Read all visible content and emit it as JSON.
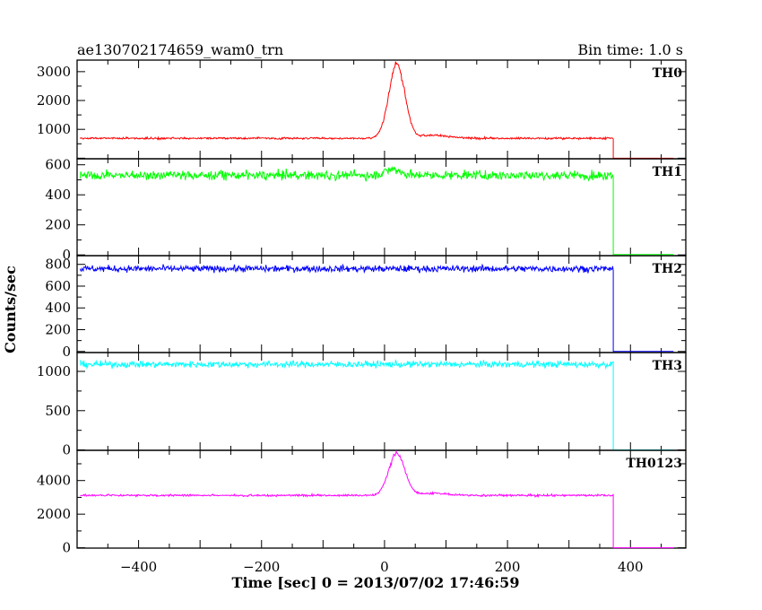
{
  "header": {
    "left_title": "ae130702174659_wam0_trn",
    "right_title": "Bin time: 1.0 s"
  },
  "chart_data": {
    "type": "line",
    "xlabel": "Time [sec] 0 = 2013/07/02 17:46:59",
    "ylabel": "Counts/sec",
    "xlim": [
      -500,
      490
    ],
    "x_ticks": [
      -400,
      -200,
      0,
      200,
      400
    ],
    "x_tick_labels": [
      "−400",
      "−200",
      "0",
      "200",
      "400"
    ],
    "panels": [
      {
        "name": "TH0",
        "color": "#ff0000",
        "ylim": [
          -20,
          3400
        ],
        "y_ticks": [
          1000,
          2000,
          3000
        ],
        "y_tick_labels": [
          "1000",
          "2000",
          "3000"
        ],
        "baseline": 690,
        "noise": 35,
        "peaks": [
          {
            "center": 20,
            "width": 13,
            "height": 2550
          },
          {
            "center": 80,
            "width": 25,
            "height": 110
          }
        ],
        "data_end": 372,
        "tail_value": 0
      },
      {
        "name": "TH1",
        "color": "#00ff00",
        "ylim": [
          -5,
          640
        ],
        "y_ticks": [
          0,
          200,
          400,
          600
        ],
        "y_tick_labels": [
          "0",
          "200",
          "400",
          "600"
        ],
        "baseline": 530,
        "noise": 30,
        "peaks": [
          {
            "center": 15,
            "width": 12,
            "height": 40
          }
        ],
        "data_end": 372,
        "tail_value": 2
      },
      {
        "name": "TH2",
        "color": "#0000ff",
        "ylim": [
          -10,
          880
        ],
        "y_ticks": [
          0,
          200,
          400,
          600,
          800
        ],
        "y_tick_labels": [
          "0",
          "200",
          "400",
          "600",
          "800"
        ],
        "baseline": 760,
        "noise": 30,
        "peaks": [],
        "data_end": 372,
        "tail_value": 0
      },
      {
        "name": "TH3",
        "color": "#00ffff",
        "ylim": [
          -5,
          1240
        ],
        "y_ticks": [
          0,
          500,
          1000
        ],
        "y_tick_labels": [
          "0",
          "500",
          "1000"
        ],
        "baseline": 1090,
        "noise": 40,
        "peaks": [],
        "data_end": 372,
        "tail_value": 0
      },
      {
        "name": "TH0123",
        "color": "#ff00ff",
        "ylim": [
          -20,
          5800
        ],
        "y_ticks": [
          0,
          2000,
          4000
        ],
        "y_tick_labels": [
          "0",
          "2000",
          "4000"
        ],
        "baseline": 3120,
        "noise": 60,
        "peaks": [
          {
            "center": 20,
            "width": 13,
            "height": 2500
          },
          {
            "center": 80,
            "width": 25,
            "height": 120
          }
        ],
        "data_end": 372,
        "tail_value": 0
      }
    ]
  }
}
